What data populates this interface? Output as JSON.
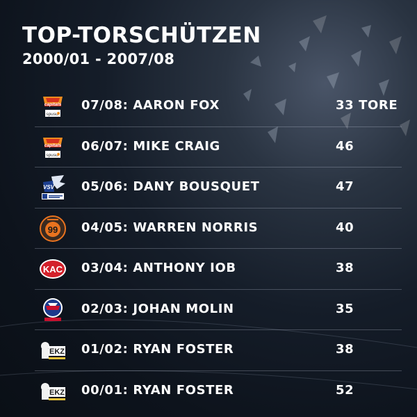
{
  "header": {
    "title": "TOP-TORSCHÜTZEN",
    "subtitle": "2000/01 - 2007/08"
  },
  "rows": [
    {
      "season": "07/08",
      "player": "AARON FOX",
      "label": "07/08: AARON FOX",
      "goals": "33 TORE",
      "logo_icon": "capitals-logo-icon",
      "logo_text": "capitals",
      "logo_sub": "spusu"
    },
    {
      "season": "06/07",
      "player": "MIKE CRAIG",
      "label": "06/07: MIKE CRAIG",
      "goals": "46",
      "logo_icon": "capitals-logo-icon",
      "logo_text": "capitals",
      "logo_sub": "spusu"
    },
    {
      "season": "05/06",
      "player": "DANY BOUSQUET",
      "label": "05/06: DANY BOUSQUET",
      "goals": "47",
      "logo_icon": "vsv-logo-icon",
      "logo_text": "VSV"
    },
    {
      "season": "04/05",
      "player": "WARREN NORRIS",
      "label": "04/05: WARREN NORRIS",
      "goals": "40",
      "logo_icon": "graz-99ers-logo-icon",
      "logo_text": "99"
    },
    {
      "season": "03/04",
      "player": "ANTHONY IOB",
      "label": "03/04: ANTHONY IOB",
      "goals": "38",
      "logo_icon": "kac-logo-icon",
      "logo_text": "KAC"
    },
    {
      "season": "02/03",
      "player": "JOHAN MOLIN",
      "label": "02/03: JOHAN MOLIN",
      "goals": "35",
      "logo_icon": "black-wings-logo-icon"
    },
    {
      "season": "01/02",
      "player": "RYAN FOSTER",
      "label": "01/02: RYAN FOSTER",
      "goals": "38",
      "logo_icon": "ekz-logo-icon",
      "logo_text": "EKZ"
    },
    {
      "season": "00/01",
      "player": "RYAN FOSTER",
      "label": "00/01: RYAN FOSTER",
      "goals": "52",
      "logo_icon": "ekz-logo-icon",
      "logo_text": "EKZ"
    }
  ],
  "colors": {
    "background": "#0d131c",
    "capitals_orange": "#f28c1e",
    "capitals_red": "#d6321e",
    "vsv_blue": "#1d3f8f",
    "graz_orange": "#e9731f",
    "kac_red": "#d3202a",
    "black_wings_red": "#c8102e",
    "black_wings_blue": "#1b3a8c",
    "ekz_gold": "#e8c13a",
    "divider": "#8b97a8"
  }
}
